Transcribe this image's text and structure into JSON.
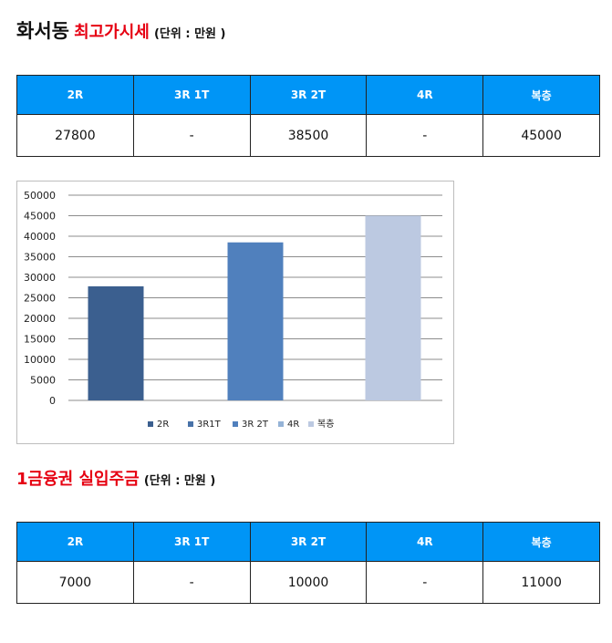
{
  "section1": {
    "title_main": "화서동",
    "title_red": "최고가시세",
    "unit": "(단위 : 만원 )",
    "headers": [
      "2R",
      "3R 1T",
      "3R 2T",
      "4R",
      "복층"
    ],
    "values": [
      "27800",
      "-",
      "38500",
      "-",
      "45000"
    ]
  },
  "section2": {
    "title_red": "1금융권 실입주금",
    "unit": "(단위 : 만원 )",
    "headers": [
      "2R",
      "3R 1T",
      "3R 2T",
      "4R",
      "복층"
    ],
    "values": [
      "7000",
      "-",
      "10000",
      "-",
      "11000"
    ]
  },
  "chart_data": {
    "type": "bar",
    "categories": [
      "2R",
      "3R1T",
      "3R 2T",
      "4R",
      "복층"
    ],
    "values": [
      27800,
      null,
      38500,
      null,
      45000
    ],
    "colors": [
      "#3b5f8f",
      "#4872a8",
      "#5080bd",
      "#95b3d7",
      "#bcc9e1"
    ],
    "ylim": [
      0,
      50000
    ],
    "yticks": [
      "0",
      "5000",
      "10000",
      "15000",
      "20000",
      "25000",
      "30000",
      "35000",
      "40000",
      "45000",
      "50000"
    ],
    "grid": true,
    "legend": "bottom"
  }
}
